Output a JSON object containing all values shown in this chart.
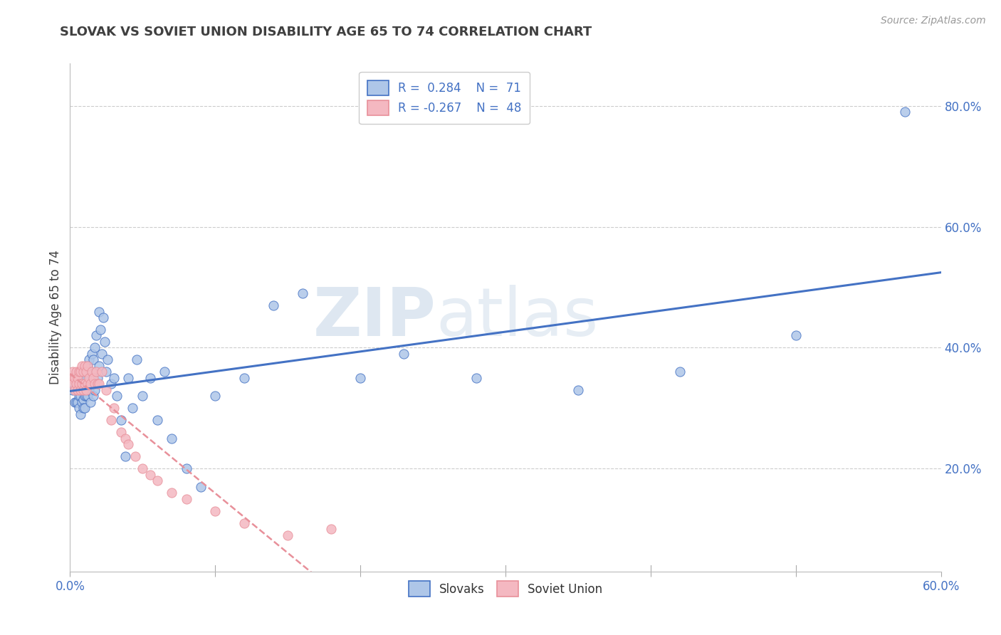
{
  "title": "SLOVAK VS SOVIET UNION DISABILITY AGE 65 TO 74 CORRELATION CHART",
  "source": "Source: ZipAtlas.com",
  "ylabel": "Disability Age 65 to 74",
  "ylabel_right_ticks": [
    "20.0%",
    "40.0%",
    "60.0%",
    "80.0%"
  ],
  "ylabel_right_values": [
    0.2,
    0.4,
    0.6,
    0.8
  ],
  "xlim": [
    0.0,
    0.6
  ],
  "ylim": [
    0.03,
    0.87
  ],
  "legend_r1": "R =  0.284",
  "legend_n1": "N =  71",
  "legend_r2": "R = -0.267",
  "legend_n2": "N =  48",
  "slovak_color": "#aec6e8",
  "soviet_color": "#f4b8c1",
  "slovak_line_color": "#4472c4",
  "soviet_line_color": "#e8909a",
  "watermark_zip": "ZIP",
  "watermark_atlas": "atlas",
  "background_color": "#ffffff",
  "grid_color": "#cccccc",
  "title_color": "#404040",
  "slovak_points_x": [
    0.002,
    0.003,
    0.004,
    0.004,
    0.005,
    0.005,
    0.006,
    0.006,
    0.006,
    0.007,
    0.007,
    0.007,
    0.008,
    0.008,
    0.008,
    0.009,
    0.009,
    0.009,
    0.01,
    0.01,
    0.01,
    0.011,
    0.011,
    0.012,
    0.012,
    0.013,
    0.013,
    0.014,
    0.014,
    0.015,
    0.015,
    0.016,
    0.016,
    0.017,
    0.017,
    0.018,
    0.019,
    0.02,
    0.02,
    0.021,
    0.022,
    0.023,
    0.024,
    0.025,
    0.026,
    0.028,
    0.03,
    0.032,
    0.035,
    0.038,
    0.04,
    0.043,
    0.046,
    0.05,
    0.055,
    0.06,
    0.065,
    0.07,
    0.08,
    0.09,
    0.1,
    0.12,
    0.14,
    0.16,
    0.2,
    0.23,
    0.28,
    0.35,
    0.42,
    0.5,
    0.575
  ],
  "slovak_points_y": [
    0.33,
    0.31,
    0.34,
    0.31,
    0.33,
    0.31,
    0.34,
    0.32,
    0.3,
    0.34,
    0.32,
    0.29,
    0.335,
    0.31,
    0.33,
    0.315,
    0.34,
    0.3,
    0.32,
    0.345,
    0.3,
    0.35,
    0.32,
    0.37,
    0.32,
    0.38,
    0.33,
    0.36,
    0.31,
    0.39,
    0.34,
    0.38,
    0.32,
    0.4,
    0.33,
    0.42,
    0.35,
    0.46,
    0.37,
    0.43,
    0.39,
    0.45,
    0.41,
    0.36,
    0.38,
    0.34,
    0.35,
    0.32,
    0.28,
    0.22,
    0.35,
    0.3,
    0.38,
    0.32,
    0.35,
    0.28,
    0.36,
    0.25,
    0.2,
    0.17,
    0.32,
    0.35,
    0.47,
    0.49,
    0.35,
    0.39,
    0.35,
    0.33,
    0.36,
    0.42,
    0.79
  ],
  "soviet_points_x": [
    0.001,
    0.002,
    0.002,
    0.003,
    0.003,
    0.004,
    0.004,
    0.005,
    0.005,
    0.006,
    0.006,
    0.007,
    0.007,
    0.008,
    0.008,
    0.009,
    0.009,
    0.01,
    0.01,
    0.011,
    0.011,
    0.012,
    0.012,
    0.013,
    0.014,
    0.015,
    0.016,
    0.017,
    0.018,
    0.019,
    0.02,
    0.022,
    0.025,
    0.028,
    0.03,
    0.035,
    0.038,
    0.04,
    0.045,
    0.05,
    0.055,
    0.06,
    0.07,
    0.08,
    0.1,
    0.12,
    0.15,
    0.18
  ],
  "soviet_points_y": [
    0.35,
    0.34,
    0.36,
    0.33,
    0.35,
    0.34,
    0.36,
    0.33,
    0.35,
    0.34,
    0.36,
    0.33,
    0.36,
    0.34,
    0.37,
    0.33,
    0.36,
    0.34,
    0.37,
    0.33,
    0.36,
    0.34,
    0.37,
    0.35,
    0.34,
    0.36,
    0.35,
    0.34,
    0.36,
    0.34,
    0.34,
    0.36,
    0.33,
    0.28,
    0.3,
    0.26,
    0.25,
    0.24,
    0.22,
    0.2,
    0.19,
    0.18,
    0.16,
    0.15,
    0.13,
    0.11,
    0.09,
    0.1
  ]
}
